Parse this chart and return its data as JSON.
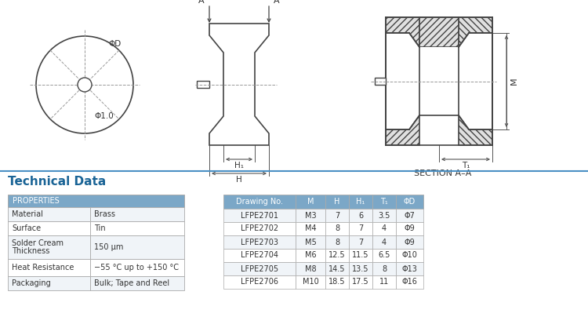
{
  "title": "Technical Data",
  "title_color": "#1a6496",
  "bg_color": "#ffffff",
  "separator_color": "#4a90c4",
  "props_header": "PROPERTIES",
  "props_header_bg": "#7ba7c7",
  "props_header_color": "#ffffff",
  "props_rows": [
    [
      "Material",
      "Brass"
    ],
    [
      "Surface",
      "Tin"
    ],
    [
      "Solder Cream\nThickness",
      "150 μm"
    ],
    [
      "Heat Resistance",
      "−55 °C up to +150 °C"
    ],
    [
      "Packaging",
      "Bulk; Tape and Reel"
    ]
  ],
  "props_row_bg": [
    "#f0f4f8",
    "#ffffff",
    "#f0f4f8",
    "#ffffff",
    "#f0f4f8"
  ],
  "table_headers": [
    "Drawing No.",
    "M",
    "H",
    "H₁",
    "T₁",
    "ΦD"
  ],
  "table_header_bg": "#7ba7c7",
  "table_header_color": "#ffffff",
  "table_rows": [
    [
      "LFPE2701",
      "M3",
      "7",
      "6",
      "3.5",
      "Φ7"
    ],
    [
      "LFPE2702",
      "M4",
      "8",
      "7",
      "4",
      "Φ9"
    ],
    [
      "LFPE2703",
      "M5",
      "8",
      "7",
      "4",
      "Φ9"
    ],
    [
      "LFPE2704",
      "M6",
      "12.5",
      "11.5",
      "6.5",
      "Φ10"
    ],
    [
      "LFPE2705",
      "M8",
      "14.5",
      "13.5",
      "8",
      "Φ13"
    ],
    [
      "LFPE2706",
      "M10",
      "18.5",
      "17.5",
      "11",
      "Φ16"
    ]
  ],
  "table_row_bg": [
    "#f0f4f8",
    "#ffffff",
    "#f0f4f8",
    "#ffffff",
    "#f0f4f8",
    "#ffffff"
  ],
  "line_color": "#cccccc",
  "border_color": "#aaaaaa",
  "text_color": "#333333",
  "edge_color": "#444444",
  "dim_color": "#555555"
}
